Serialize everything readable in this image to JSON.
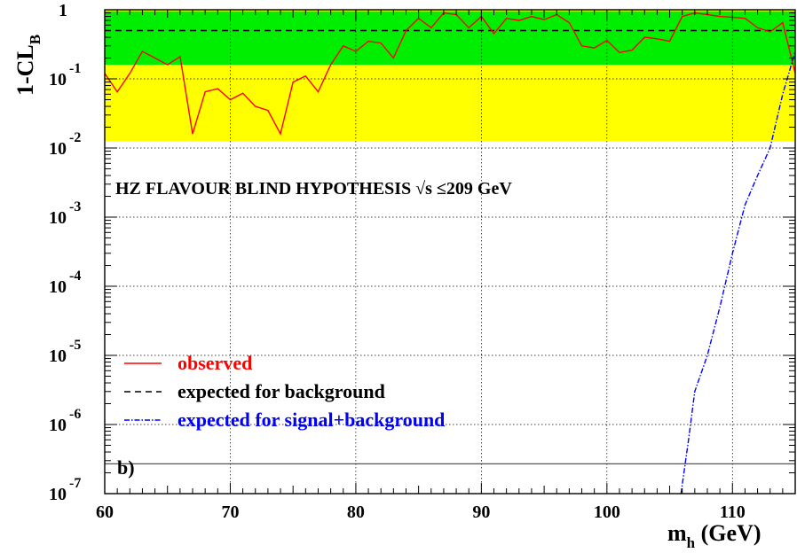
{
  "chart_data": {
    "type": "line",
    "title": "",
    "annotation": "HZ FLAVOUR BLIND HYPOTHESIS √s  ≤209 GeV",
    "panel_label": "b)",
    "xlabel": "m",
    "xlabel_sub": "h",
    "xlabel_unit": " (GeV)",
    "ylabel": "1-CL",
    "ylabel_sub": "B",
    "xlim": [
      60,
      115
    ],
    "ylim": [
      1e-07,
      1
    ],
    "yscale": "log",
    "grid": true,
    "x_ticks": [
      60,
      70,
      80,
      90,
      100,
      110
    ],
    "y_ticks": [
      {
        "value": 1,
        "base": "1",
        "exp": ""
      },
      {
        "value": 0.1,
        "base": "10",
        "exp": "-1"
      },
      {
        "value": 0.01,
        "base": "10",
        "exp": "-2"
      },
      {
        "value": 0.001,
        "base": "10",
        "exp": "-3"
      },
      {
        "value": 0.0001,
        "base": "10",
        "exp": "-4"
      },
      {
        "value": 1e-05,
        "base": "10",
        "exp": "-5"
      },
      {
        "value": 1e-06,
        "base": "10",
        "exp": "-6"
      },
      {
        "value": 1e-07,
        "base": "10",
        "exp": "-7"
      }
    ],
    "bands": [
      {
        "name": "2 sigma band",
        "color": "#ffff00",
        "y_low": 0.0125,
        "y_high": 1
      },
      {
        "name": "1 sigma band",
        "color": "#00ee00",
        "y_low": 0.16,
        "y_high": 0.95
      }
    ],
    "reference_line": {
      "y": 2.7e-07,
      "color": "#555555"
    },
    "legend": {
      "placement": "bottom-left",
      "entries": [
        {
          "label": "observed",
          "color": "#ff0000",
          "style": "solid"
        },
        {
          "label": "expected for background",
          "color": "#000000",
          "style": "dashed"
        },
        {
          "label": "expected for signal+background",
          "color": "#0000ff",
          "style": "dashdot"
        }
      ]
    },
    "series": [
      {
        "name": "expected for background",
        "color": "#000000",
        "style": "dashed",
        "x": [
          60,
          114.5
        ],
        "y": [
          0.5,
          0.5
        ]
      },
      {
        "name": "observed",
        "color": "#ff0000",
        "style": "solid",
        "x": [
          60,
          61,
          62,
          63,
          64,
          65,
          66,
          67,
          68,
          69,
          70,
          71,
          72,
          73,
          74,
          75,
          76,
          77,
          78,
          79,
          80,
          81,
          82,
          83,
          84,
          85,
          86,
          87,
          88,
          89,
          90,
          91,
          92,
          93,
          94,
          95,
          96,
          97,
          98,
          99,
          100,
          101,
          102,
          103,
          104,
          105,
          106,
          107,
          108,
          109,
          110,
          111,
          112,
          113,
          114,
          115
        ],
        "y": [
          0.12,
          0.065,
          0.12,
          0.25,
          0.2,
          0.16,
          0.21,
          0.016,
          0.065,
          0.072,
          0.05,
          0.062,
          0.04,
          0.035,
          0.016,
          0.09,
          0.11,
          0.065,
          0.16,
          0.3,
          0.25,
          0.35,
          0.33,
          0.2,
          0.5,
          0.75,
          0.55,
          0.9,
          0.85,
          0.55,
          0.8,
          0.45,
          0.75,
          0.7,
          0.8,
          0.72,
          0.85,
          0.65,
          0.3,
          0.28,
          0.36,
          0.24,
          0.26,
          0.4,
          0.38,
          0.35,
          0.8,
          0.9,
          0.85,
          0.8,
          0.78,
          0.75,
          0.55,
          0.48,
          0.65,
          0.12
        ]
      },
      {
        "name": "expected for signal+background",
        "color": "#0000ff",
        "style": "dashdot",
        "x": [
          105.9,
          106.5,
          107,
          108,
          109,
          110,
          111,
          112,
          113,
          114,
          115
        ],
        "y": [
          1e-07,
          6e-07,
          3e-06,
          1e-05,
          5e-05,
          0.0003,
          0.0015,
          0.004,
          0.01,
          0.06,
          0.25
        ]
      }
    ]
  }
}
